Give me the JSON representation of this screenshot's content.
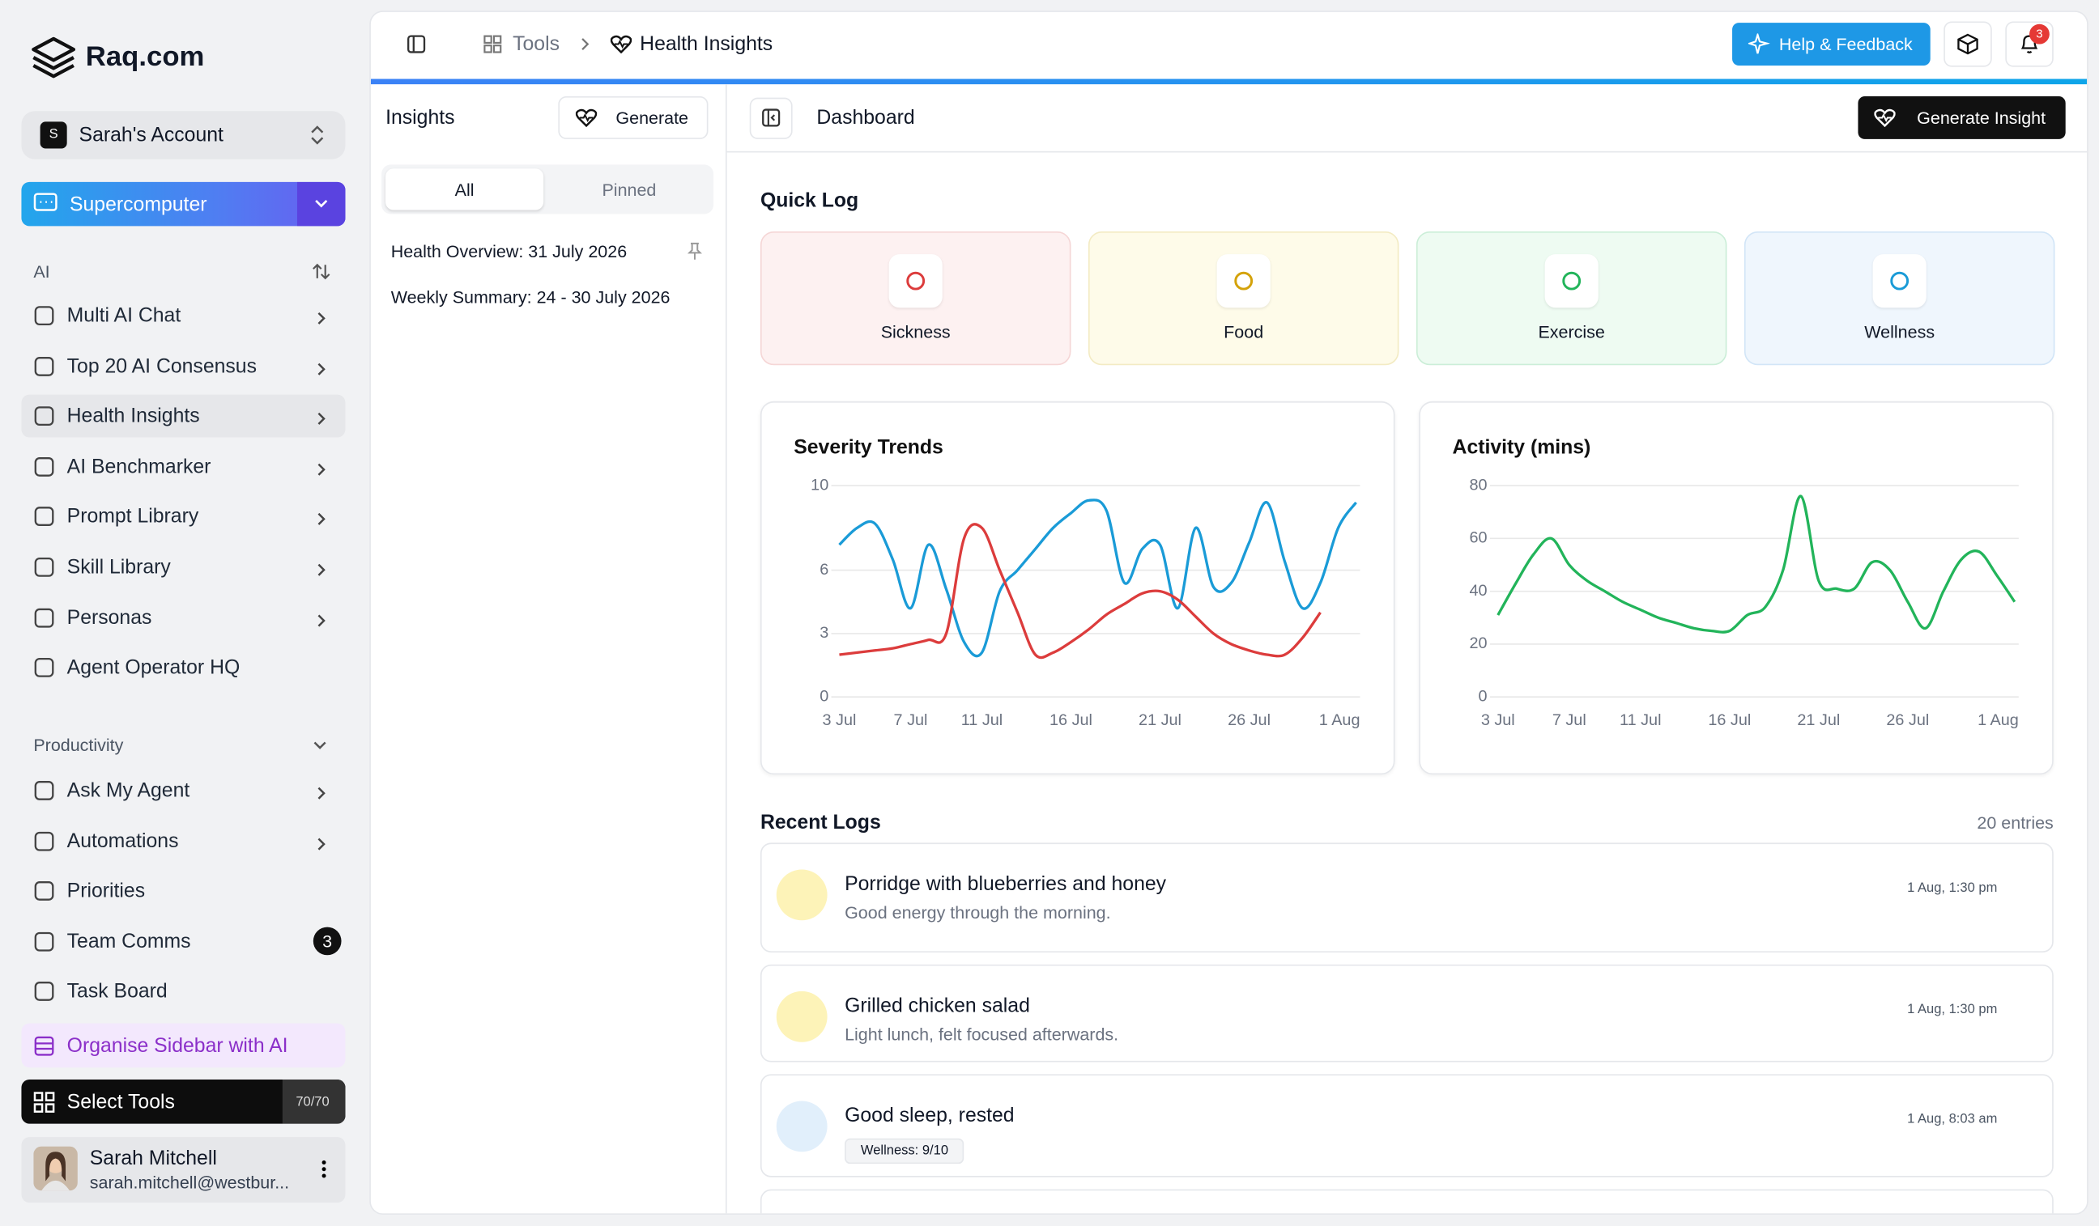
{
  "brand": "Raq.com",
  "sidebar": {
    "account_initial": "S",
    "account": "Sarah's Account",
    "supercomputer": "Supercomputer",
    "ai_section": "AI",
    "ai_items": [
      "Multi AI Chat",
      "Top 20 AI Consensus",
      "Health Insights",
      "AI Benchmarker",
      "Prompt Library",
      "Skill Library",
      "Personas",
      "Agent Operator HQ"
    ],
    "productivity_section": "Productivity",
    "productivity_items": [
      "Ask My Agent",
      "Automations",
      "Priorities",
      "Team Comms",
      "Task Board"
    ],
    "team_comms_badge": "3",
    "organise": "Organise Sidebar with AI",
    "select_tools": "Select Tools",
    "tools_count": "70/70",
    "user": {
      "name": "Sarah Mitchell",
      "email": "sarah.mitchell@westbur..."
    }
  },
  "header": {
    "breadcrumb": [
      "Tools",
      "Health Insights"
    ],
    "help": "Help & Feedback",
    "notifications": "3"
  },
  "insights": {
    "title": "Insights",
    "generate": "Generate",
    "tabs": [
      "All",
      "Pinned"
    ],
    "items": [
      "Health Overview: 31 July 2026",
      "Weekly Summary: 24 - 30 July 2026"
    ]
  },
  "dashboard": {
    "title": "Dashboard",
    "generate_insight": "Generate Insight",
    "quick_log_title": "Quick Log",
    "quick_log": [
      "Sickness",
      "Food",
      "Exercise",
      "Wellness"
    ],
    "recent_title": "Recent Logs",
    "entries": "20 entries",
    "logs": [
      {
        "title": "Porridge with blueberries and honey",
        "note": "Good energy through the morning.",
        "time": "1 Aug, 1:30 pm"
      },
      {
        "title": "Grilled chicken salad",
        "note": "Light lunch, felt focused afterwards.",
        "time": "1 Aug, 1:30 pm"
      },
      {
        "title": "Good sleep, rested",
        "tag": "Wellness: 9/10",
        "time": "1 Aug, 8:03 am"
      }
    ]
  },
  "chart_data": [
    {
      "type": "line",
      "title": "Severity Trends",
      "categories": [
        "3 Jul",
        null,
        null,
        null,
        "7 Jul",
        null,
        null,
        null,
        "11 Jul",
        null,
        null,
        null,
        null,
        "16 Jul",
        null,
        null,
        null,
        null,
        "21 Jul",
        null,
        null,
        null,
        null,
        "26 Jul",
        null,
        null,
        null,
        null,
        null,
        "1 Aug"
      ],
      "ylim": [
        0,
        10
      ],
      "yticks": [
        0,
        3,
        6,
        10
      ],
      "grid": true,
      "series": [
        {
          "color": "#1a9bd7",
          "values": [
            7.2,
            8.0,
            8.2,
            6.5,
            4.2,
            7.2,
            5.1,
            2.6,
            2.1,
            5.0,
            6.0,
            7.0,
            8.0,
            8.7,
            9.3,
            8.8,
            5.4,
            7.0,
            7.2,
            4.2,
            8.0,
            5.2,
            5.4,
            7.3,
            9.2,
            6.4,
            4.2,
            5.4,
            8.0,
            9.2
          ]
        },
        {
          "color": "#dc3c3c",
          "values": [
            2.0,
            2.1,
            2.2,
            2.3,
            2.5,
            2.7,
            3.0,
            7.5,
            8.0,
            6.0,
            4.0,
            2.0,
            2.1,
            2.6,
            3.2,
            3.9,
            4.4,
            4.9,
            5.0,
            4.6,
            3.8,
            3.0,
            2.5,
            2.2,
            2.0,
            2.0,
            2.8,
            4.0,
            null,
            null
          ]
        }
      ]
    },
    {
      "type": "line",
      "title": "Activity (mins)",
      "categories": [
        "3 Jul",
        null,
        null,
        null,
        "7 Jul",
        null,
        null,
        null,
        "11 Jul",
        null,
        null,
        null,
        null,
        "16 Jul",
        null,
        null,
        null,
        null,
        "21 Jul",
        null,
        null,
        null,
        null,
        "26 Jul",
        null,
        null,
        null,
        null,
        null,
        "1 Aug"
      ],
      "ylim": [
        0,
        80
      ],
      "yticks": [
        0,
        20,
        40,
        60,
        80
      ],
      "grid": true,
      "series": [
        {
          "color": "#22b45a",
          "values": [
            31,
            43,
            54,
            60,
            50,
            44,
            40,
            36,
            33,
            30,
            28,
            26,
            25,
            25,
            31,
            34,
            48,
            76,
            44,
            41,
            41,
            51,
            48,
            36,
            26,
            40,
            52,
            55,
            46,
            36
          ]
        }
      ]
    }
  ]
}
